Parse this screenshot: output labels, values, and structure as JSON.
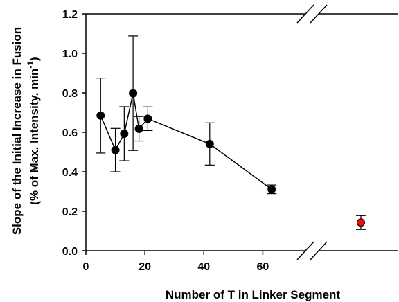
{
  "chart_data": {
    "type": "scatter",
    "xlabel": "Number of T in Linker Segment",
    "ylabel_line1": "Slope of the Initial Increase in Fusion",
    "ylabel_line2": "(% of Max. Intensity. min",
    "ylabel_superscript": "-1",
    "ylabel_close": ")",
    "xlim": [
      0,
      70
    ],
    "ylim": [
      0,
      1.2
    ],
    "x_ticks": [
      "0",
      "20",
      "40",
      "60"
    ],
    "y_ticks": [
      "0.0",
      "0.2",
      "0.4",
      "0.6",
      "0.8",
      "1.0",
      "1.2"
    ],
    "axis_break": true,
    "grid": false,
    "series": [
      {
        "color": "#000000",
        "connected": true,
        "points": [
          {
            "x": 5,
            "y": 0.685,
            "err": 0.19
          },
          {
            "x": 10,
            "y": 0.51,
            "err": 0.11
          },
          {
            "x": 13,
            "y": 0.593,
            "err": 0.137
          },
          {
            "x": 16,
            "y": 0.798,
            "err": 0.29
          },
          {
            "x": 18,
            "y": 0.618,
            "err": 0.062
          },
          {
            "x": 21,
            "y": 0.669,
            "err": 0.06
          },
          {
            "x": 42,
            "y": 0.541,
            "err": 0.107
          },
          {
            "x": 63,
            "y": 0.311,
            "err": 0.022
          }
        ]
      },
      {
        "color": "#e8100c",
        "connected": false,
        "points": [
          {
            "y": 0.143,
            "err": 0.035
          }
        ]
      }
    ]
  }
}
